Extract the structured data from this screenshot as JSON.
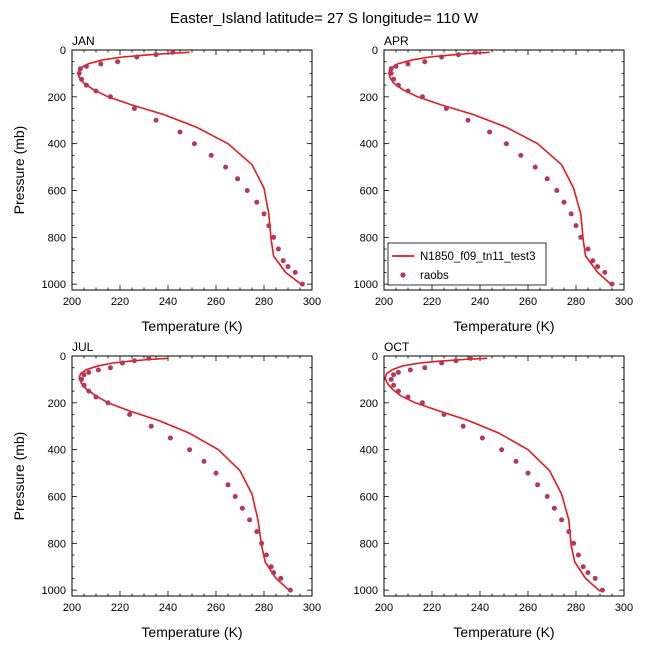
{
  "title": "Easter_Island  latitude= 27 S longitude= 110 W",
  "colors": {
    "model_line": "#e41a1c",
    "obs_marker": "#b5375e",
    "axis": "#000000"
  },
  "legend": {
    "model_label": "N1850_f09_tn11_test3",
    "obs_label": "raobs",
    "location": "APR panel, lower-left"
  },
  "chart_data": [
    {
      "type": "line",
      "panel": "JAN",
      "xlabel": "Temperature (K)",
      "ylabel": "Pressure (mb)",
      "xlim": [
        200,
        300
      ],
      "ylim": [
        1025,
        0
      ],
      "y_reversed": true,
      "xticks": [
        200,
        220,
        240,
        260,
        280,
        300
      ],
      "yticks": [
        0,
        200,
        400,
        600,
        800,
        1000
      ],
      "series": [
        {
          "name": "N1850_f09_tn11_test3",
          "kind": "line",
          "x": [
            249,
            240,
            230,
            221,
            213,
            207,
            203.5,
            202.5,
            203,
            205,
            209,
            215,
            225,
            238,
            252,
            265,
            275,
            280,
            282,
            283,
            284,
            289,
            296
          ],
          "y": [
            10,
            15,
            22,
            30,
            42,
            58,
            76,
            96,
            118,
            142,
            170,
            200,
            235,
            275,
            330,
            400,
            490,
            590,
            700,
            810,
            880,
            950,
            1005
          ]
        },
        {
          "name": "raobs",
          "kind": "markers",
          "x": [
            242,
            235,
            227,
            219,
            212,
            206,
            203.5,
            203,
            204,
            206,
            210,
            216,
            226,
            235,
            245,
            251,
            258,
            264,
            269,
            273,
            277,
            280,
            282,
            284,
            286,
            288,
            290,
            293,
            296
          ],
          "y": [
            10,
            20,
            30,
            50,
            60,
            70,
            80,
            100,
            125,
            150,
            175,
            200,
            250,
            300,
            350,
            400,
            450,
            500,
            550,
            600,
            650,
            700,
            750,
            800,
            850,
            900,
            925,
            950,
            1000
          ]
        }
      ]
    },
    {
      "type": "line",
      "panel": "APR",
      "xlabel": "Temperature (K)",
      "ylabel": "Pressure (mb)",
      "xlim": [
        200,
        300
      ],
      "ylim": [
        1025,
        0
      ],
      "y_reversed": true,
      "xticks": [
        200,
        220,
        240,
        260,
        280,
        300
      ],
      "yticks": [
        0,
        200,
        400,
        600,
        800,
        1000
      ],
      "series": [
        {
          "name": "N1850_f09_tn11_test3",
          "kind": "line",
          "x": [
            244,
            236,
            227,
            219,
            212,
            206,
            203,
            202,
            202.5,
            204,
            208,
            214,
            224,
            237,
            251,
            264,
            274,
            279,
            282,
            283,
            284,
            289,
            295
          ],
          "y": [
            10,
            15,
            22,
            30,
            42,
            58,
            76,
            96,
            118,
            142,
            170,
            200,
            235,
            275,
            330,
            400,
            490,
            590,
            700,
            810,
            880,
            950,
            1005
          ]
        },
        {
          "name": "raobs",
          "kind": "markers",
          "x": [
            238,
            231,
            224,
            217,
            210,
            205,
            203,
            203,
            204,
            206,
            210,
            216,
            226,
            235,
            244,
            251,
            257,
            263,
            268,
            272,
            275,
            278,
            280,
            282,
            285,
            287,
            289,
            292,
            295
          ],
          "y": [
            10,
            20,
            30,
            50,
            60,
            70,
            80,
            100,
            125,
            150,
            175,
            200,
            250,
            300,
            350,
            400,
            450,
            500,
            550,
            600,
            650,
            700,
            750,
            800,
            850,
            900,
            925,
            950,
            1000
          ]
        }
      ]
    },
    {
      "type": "line",
      "panel": "JUL",
      "xlabel": "Temperature (K)",
      "ylabel": "Pressure (mb)",
      "xlim": [
        200,
        300
      ],
      "ylim": [
        1025,
        0
      ],
      "y_reversed": true,
      "xticks": [
        200,
        220,
        240,
        260,
        280,
        300
      ],
      "yticks": [
        0,
        200,
        400,
        600,
        800,
        1000
      ],
      "series": [
        {
          "name": "N1850_f09_tn11_test3",
          "kind": "line",
          "x": [
            240,
            232,
            224,
            217,
            211,
            206,
            203.5,
            203,
            204,
            206,
            210,
            215,
            224,
            236,
            249,
            261,
            270,
            275,
            277.5,
            279,
            280.5,
            285,
            291
          ],
          "y": [
            10,
            15,
            22,
            30,
            42,
            58,
            76,
            96,
            118,
            142,
            170,
            200,
            235,
            275,
            330,
            400,
            490,
            590,
            700,
            810,
            880,
            950,
            1005
          ]
        },
        {
          "name": "raobs",
          "kind": "markers",
          "x": [
            232,
            226,
            221,
            216,
            211,
            207,
            205,
            204,
            205,
            207,
            210,
            215,
            224,
            233,
            241,
            249,
            255,
            260,
            265,
            268,
            271,
            274,
            277,
            279,
            281,
            283,
            284,
            287,
            291
          ],
          "y": [
            10,
            20,
            30,
            50,
            60,
            70,
            80,
            100,
            125,
            150,
            175,
            200,
            250,
            300,
            350,
            400,
            450,
            500,
            550,
            600,
            650,
            700,
            750,
            800,
            850,
            900,
            925,
            950,
            1000
          ]
        }
      ]
    },
    {
      "type": "line",
      "panel": "OCT",
      "xlabel": "Temperature (K)",
      "ylabel": "Pressure (mb)",
      "xlim": [
        200,
        300
      ],
      "ylim": [
        1025,
        0
      ],
      "y_reversed": true,
      "xticks": [
        200,
        220,
        240,
        260,
        280,
        300
      ],
      "yticks": [
        0,
        200,
        400,
        600,
        800,
        1000
      ],
      "series": [
        {
          "name": "N1850_f09_tn11_test3",
          "kind": "line",
          "x": [
            243,
            233,
            223,
            215,
            208,
            203.5,
            201,
            200.5,
            201.5,
            203.5,
            207,
            213,
            223,
            235,
            248,
            260,
            269,
            274,
            277,
            278,
            279.5,
            284,
            290
          ],
          "y": [
            10,
            15,
            22,
            30,
            42,
            58,
            76,
            96,
            118,
            142,
            170,
            200,
            235,
            275,
            330,
            400,
            490,
            590,
            700,
            810,
            880,
            950,
            1005
          ]
        },
        {
          "name": "raobs",
          "kind": "markers",
          "x": [
            236,
            230,
            224,
            217,
            211,
            206,
            204,
            203,
            204,
            206,
            210,
            216,
            225,
            233,
            241,
            249,
            255,
            260,
            264,
            268,
            271,
            274,
            277,
            279,
            281,
            283,
            285,
            288,
            291
          ],
          "y": [
            10,
            20,
            30,
            50,
            60,
            70,
            80,
            100,
            125,
            150,
            175,
            200,
            250,
            300,
            350,
            400,
            450,
            500,
            550,
            600,
            650,
            700,
            750,
            800,
            850,
            900,
            925,
            950,
            1000
          ]
        }
      ]
    }
  ]
}
